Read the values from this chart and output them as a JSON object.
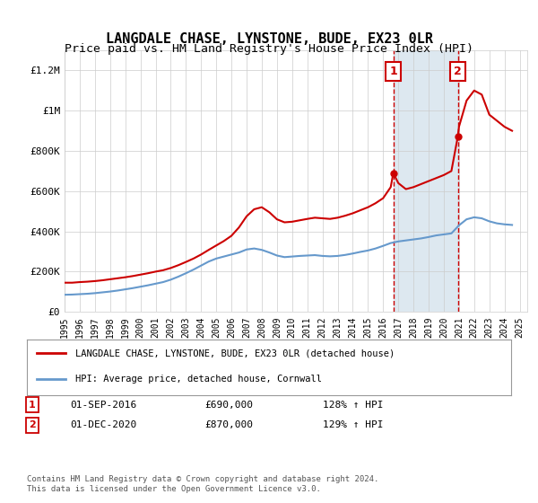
{
  "title": "LANGDALE CHASE, LYNSTONE, BUDE, EX23 0LR",
  "subtitle": "Price paid vs. HM Land Registry's House Price Index (HPI)",
  "title_fontsize": 11,
  "subtitle_fontsize": 9.5,
  "ylabel_ticks": [
    "£0",
    "£200K",
    "£400K",
    "£600K",
    "£800K",
    "£1M",
    "£1.2M"
  ],
  "ytick_vals": [
    0,
    200000,
    400000,
    600000,
    800000,
    1000000,
    1200000
  ],
  "ylim": [
    0,
    1300000
  ],
  "xlim_start": 1995.0,
  "xlim_end": 2025.5,
  "xticks": [
    1995,
    1996,
    1997,
    1998,
    1999,
    2000,
    2001,
    2002,
    2003,
    2004,
    2005,
    2006,
    2007,
    2008,
    2009,
    2010,
    2011,
    2012,
    2013,
    2014,
    2015,
    2016,
    2017,
    2018,
    2019,
    2020,
    2021,
    2022,
    2023,
    2024,
    2025
  ],
  "legend_label_red": "LANGDALE CHASE, LYNSTONE, BUDE, EX23 0LR (detached house)",
  "legend_label_blue": "HPI: Average price, detached house, Cornwall",
  "red_color": "#cc0000",
  "blue_color": "#6699cc",
  "marker1_x": 2016.67,
  "marker1_y": 690000,
  "marker1_label": "1",
  "marker1_date": "01-SEP-2016",
  "marker1_price": "£690,000",
  "marker1_hpi": "128% ↑ HPI",
  "marker2_x": 2020.92,
  "marker2_y": 870000,
  "marker2_label": "2",
  "marker2_date": "01-DEC-2020",
  "marker2_price": "£870,000",
  "marker2_hpi": "129% ↑ HPI",
  "shade_color": "#dde8f0",
  "copyright_text": "Contains HM Land Registry data © Crown copyright and database right 2024.\nThis data is licensed under the Open Government Licence v3.0.",
  "red_data_x": [
    1995.0,
    1995.5,
    1996.0,
    1996.5,
    1997.0,
    1997.5,
    1998.0,
    1998.5,
    1999.0,
    1999.5,
    2000.0,
    2000.5,
    2001.0,
    2001.5,
    2002.0,
    2002.5,
    2003.0,
    2003.5,
    2004.0,
    2004.5,
    2005.0,
    2005.5,
    2006.0,
    2006.5,
    2007.0,
    2007.5,
    2008.0,
    2008.5,
    2009.0,
    2009.5,
    2010.0,
    2010.5,
    2011.0,
    2011.5,
    2012.0,
    2012.5,
    2013.0,
    2013.5,
    2014.0,
    2014.5,
    2015.0,
    2015.5,
    2016.0,
    2016.5,
    2016.67,
    2017.0,
    2017.5,
    2018.0,
    2018.5,
    2019.0,
    2019.5,
    2020.0,
    2020.5,
    2020.92,
    2021.0,
    2021.5,
    2022.0,
    2022.5,
    2023.0,
    2023.5,
    2024.0,
    2024.5
  ],
  "red_data_y": [
    145000,
    145000,
    148000,
    150000,
    153000,
    157000,
    162000,
    167000,
    172000,
    178000,
    185000,
    192000,
    200000,
    207000,
    218000,
    232000,
    248000,
    265000,
    285000,
    308000,
    330000,
    352000,
    378000,
    420000,
    475000,
    510000,
    520000,
    495000,
    460000,
    445000,
    448000,
    455000,
    462000,
    468000,
    465000,
    462000,
    468000,
    478000,
    490000,
    505000,
    520000,
    540000,
    565000,
    620000,
    690000,
    640000,
    610000,
    620000,
    635000,
    650000,
    665000,
    680000,
    700000,
    870000,
    920000,
    1050000,
    1100000,
    1080000,
    980000,
    950000,
    920000,
    900000
  ],
  "blue_data_x": [
    1995.0,
    1995.5,
    1996.0,
    1996.5,
    1997.0,
    1997.5,
    1998.0,
    1998.5,
    1999.0,
    1999.5,
    2000.0,
    2000.5,
    2001.0,
    2001.5,
    2002.0,
    2002.5,
    2003.0,
    2003.5,
    2004.0,
    2004.5,
    2005.0,
    2005.5,
    2006.0,
    2006.5,
    2007.0,
    2007.5,
    2008.0,
    2008.5,
    2009.0,
    2009.5,
    2010.0,
    2010.5,
    2011.0,
    2011.5,
    2012.0,
    2012.5,
    2013.0,
    2013.5,
    2014.0,
    2014.5,
    2015.0,
    2015.5,
    2016.0,
    2016.5,
    2017.0,
    2017.5,
    2018.0,
    2018.5,
    2019.0,
    2019.5,
    2020.0,
    2020.5,
    2021.0,
    2021.5,
    2022.0,
    2022.5,
    2023.0,
    2023.5,
    2024.0,
    2024.5
  ],
  "blue_data_y": [
    85000,
    86000,
    88000,
    90000,
    93000,
    97000,
    101000,
    106000,
    112000,
    118000,
    125000,
    132000,
    140000,
    148000,
    160000,
    175000,
    192000,
    210000,
    230000,
    250000,
    265000,
    275000,
    285000,
    295000,
    310000,
    315000,
    308000,
    295000,
    280000,
    272000,
    275000,
    278000,
    280000,
    282000,
    278000,
    276000,
    278000,
    283000,
    290000,
    298000,
    305000,
    315000,
    328000,
    342000,
    350000,
    355000,
    360000,
    365000,
    372000,
    380000,
    385000,
    390000,
    430000,
    460000,
    470000,
    465000,
    450000,
    440000,
    435000,
    432000
  ]
}
